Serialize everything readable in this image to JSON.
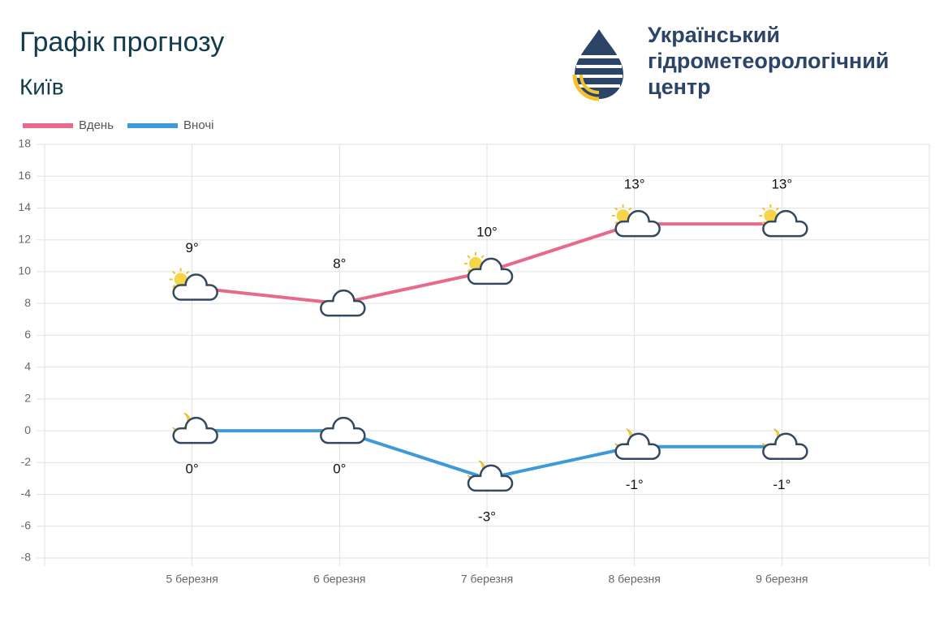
{
  "header": {
    "title": "Графік прогнозу",
    "subtitle": "Київ"
  },
  "logo": {
    "lines": [
      "Український",
      "гідрометеорологічний",
      "центр"
    ]
  },
  "chart_data": {
    "type": "line",
    "categories": [
      "5 березня",
      "6 березня",
      "7 березня",
      "8 березня",
      "9 березня"
    ],
    "series": [
      {
        "name": "Вдень",
        "color": "#e8698a",
        "values": [
          9,
          8,
          10,
          13,
          13
        ],
        "value_labels": [
          "9°",
          "8°",
          "10°",
          "13°",
          "13°"
        ]
      },
      {
        "name": "Вночі",
        "color": "#3d9ad9",
        "values": [
          0,
          0,
          -3,
          -1,
          -1
        ],
        "value_labels": [
          "0°",
          "0°",
          "-3°",
          "-1°",
          "-1°"
        ]
      }
    ],
    "ylim": [
      -8,
      18
    ],
    "yticks": [
      -8,
      -6,
      -4,
      -2,
      0,
      2,
      4,
      6,
      8,
      10,
      12,
      14,
      16,
      18
    ],
    "grid": true,
    "legend": "top-left"
  }
}
